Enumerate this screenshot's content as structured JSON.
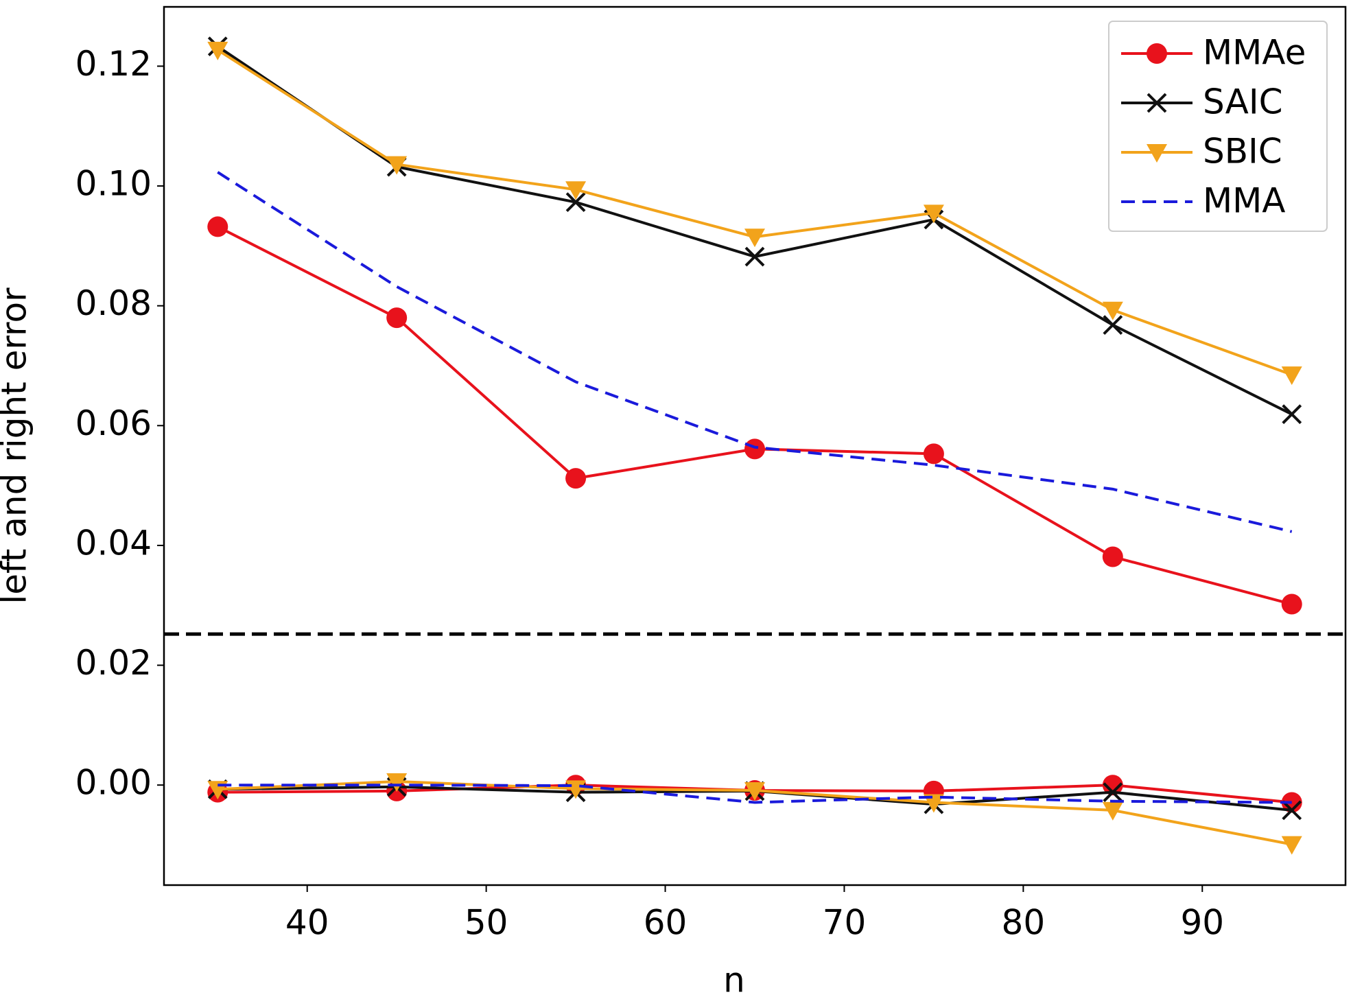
{
  "chart_data": {
    "type": "line",
    "x": [
      35,
      45,
      55,
      65,
      75,
      85,
      95
    ],
    "xlabel": "n",
    "ylabel": "left and right error",
    "xlim": [
      32,
      98
    ],
    "xticks": [
      40,
      50,
      60,
      70,
      80,
      90
    ],
    "ylim": [
      -0.0167,
      0.1299
    ],
    "yticks": [
      {
        "value": 0,
        "label": "0.00"
      },
      0.02,
      0.04,
      0.06,
      0.08,
      {
        "value": 0.1,
        "label": "0.10"
      },
      0.12
    ],
    "legend": "upper right",
    "hline": {
      "value": 0.0252,
      "color": "#000000",
      "dash": true
    },
    "series": [
      {
        "name": "MMAe",
        "color": "#e8121c",
        "marker": "circle",
        "dash": false,
        "values": [
          0.0932,
          0.078,
          0.0512,
          0.0561,
          0.0553,
          0.0381,
          0.0302
        ]
      },
      {
        "name": "SAIC",
        "color": "#111111",
        "marker": "x",
        "dash": false,
        "values": [
          0.1233,
          0.1032,
          0.0973,
          0.0882,
          0.0944,
          0.0768,
          0.0619
        ]
      },
      {
        "name": "SBIC",
        "color": "#f2a31b",
        "marker": "triangle-down",
        "dash": false,
        "values": [
          0.1227,
          0.1036,
          0.0994,
          0.0915,
          0.0955,
          0.0793,
          0.0685
        ]
      },
      {
        "name": "MMA",
        "color": "#1a1adb",
        "marker": "none",
        "dash": true,
        "values": [
          0.1023,
          0.0832,
          0.0673,
          0.0564,
          0.0534,
          0.0494,
          0.0423
        ]
      },
      {
        "color": "#e8121c",
        "marker": "circle",
        "dash": false,
        "values": [
          -0.0012,
          -0.001,
          0,
          -0.0009,
          -0.001,
          0,
          -0.0029
        ]
      },
      {
        "color": "#111111",
        "marker": "x",
        "dash": false,
        "values": [
          -0.0007,
          -0.0003,
          -0.0012,
          -0.001,
          -0.0032,
          -0.0012,
          -0.0042
        ]
      },
      {
        "color": "#f2a31b",
        "marker": "triangle-down",
        "dash": false,
        "values": [
          -0.0007,
          0.0006,
          -0.0006,
          -0.0009,
          -0.0029,
          -0.0042,
          -0.0099
        ]
      },
      {
        "color": "#1a1adb",
        "marker": "none",
        "dash": true,
        "values": [
          0,
          0,
          -0.0001,
          -0.0029,
          -0.002,
          -0.0027,
          -0.0029
        ]
      }
    ]
  }
}
